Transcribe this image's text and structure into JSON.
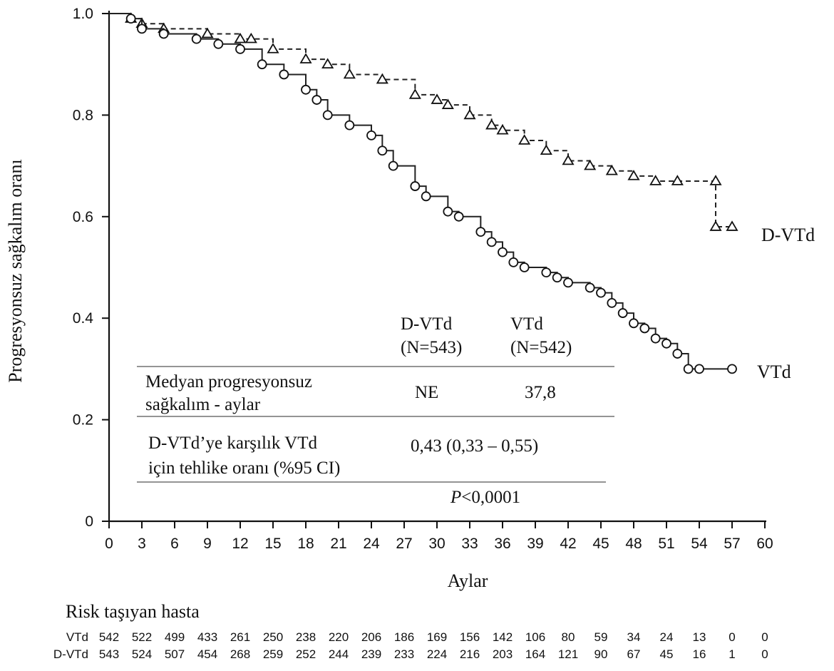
{
  "chart_data": {
    "type": "line",
    "xlabel": "Aylar",
    "ylabel": "Progresyonsuz sağkalım oranı",
    "xlim": [
      0,
      60
    ],
    "ylim": [
      0,
      1.0
    ],
    "x_ticks": [
      "0",
      "3",
      "6",
      "9",
      "12",
      "15",
      "18",
      "21",
      "24",
      "27",
      "30",
      "33",
      "36",
      "39",
      "42",
      "45",
      "48",
      "51",
      "54",
      "57",
      "60"
    ],
    "y_ticks": [
      "0",
      "0.2",
      "0.4",
      "0.6",
      "0.8",
      "1.0"
    ],
    "grid": false,
    "series": [
      {
        "name": "D-VTd",
        "style": "dashed",
        "marker": "triangle",
        "color": "#222222",
        "points": [
          [
            0,
            1.0
          ],
          [
            2,
            0.99
          ],
          [
            3,
            0.98
          ],
          [
            5,
            0.97
          ],
          [
            9,
            0.96
          ],
          [
            12,
            0.95
          ],
          [
            13,
            0.95
          ],
          [
            15,
            0.93
          ],
          [
            18,
            0.91
          ],
          [
            20,
            0.9
          ],
          [
            22,
            0.88
          ],
          [
            25,
            0.87
          ],
          [
            28,
            0.84
          ],
          [
            30,
            0.83
          ],
          [
            31,
            0.82
          ],
          [
            33,
            0.8
          ],
          [
            35,
            0.78
          ],
          [
            36,
            0.77
          ],
          [
            38,
            0.75
          ],
          [
            40,
            0.73
          ],
          [
            42,
            0.71
          ],
          [
            44,
            0.7
          ],
          [
            46,
            0.69
          ],
          [
            48,
            0.68
          ],
          [
            50,
            0.67
          ],
          [
            52,
            0.67
          ],
          [
            55.5,
            0.67
          ],
          [
            55.5,
            0.58
          ],
          [
            57,
            0.58
          ]
        ]
      },
      {
        "name": "VTd",
        "style": "solid",
        "marker": "circle",
        "color": "#222222",
        "points": [
          [
            0,
            1.0
          ],
          [
            2,
            0.99
          ],
          [
            3,
            0.97
          ],
          [
            5,
            0.96
          ],
          [
            8,
            0.95
          ],
          [
            10,
            0.94
          ],
          [
            12,
            0.93
          ],
          [
            14,
            0.9
          ],
          [
            16,
            0.88
          ],
          [
            18,
            0.85
          ],
          [
            19,
            0.83
          ],
          [
            20,
            0.8
          ],
          [
            22,
            0.78
          ],
          [
            24,
            0.76
          ],
          [
            25,
            0.73
          ],
          [
            26,
            0.7
          ],
          [
            28,
            0.66
          ],
          [
            29,
            0.64
          ],
          [
            31,
            0.61
          ],
          [
            32,
            0.6
          ],
          [
            34,
            0.57
          ],
          [
            35,
            0.55
          ],
          [
            36,
            0.53
          ],
          [
            37,
            0.51
          ],
          [
            38,
            0.5
          ],
          [
            40,
            0.49
          ],
          [
            41,
            0.48
          ],
          [
            42,
            0.47
          ],
          [
            44,
            0.46
          ],
          [
            45,
            0.45
          ],
          [
            46,
            0.43
          ],
          [
            47,
            0.41
          ],
          [
            48,
            0.39
          ],
          [
            49,
            0.38
          ],
          [
            50,
            0.36
          ],
          [
            51,
            0.35
          ],
          [
            52,
            0.33
          ],
          [
            53,
            0.3
          ],
          [
            54,
            0.3
          ],
          [
            57,
            0.3
          ]
        ]
      }
    ],
    "series_labels": {
      "dvtd": "D-VTd",
      "vtd": "VTd"
    },
    "annotation_table": {
      "col1": "D-VTd",
      "col1_n": "(N=543)",
      "col2": "VTd",
      "col2_n": "(N=542)",
      "row1_label_line1": "Medyan progresyonsuz",
      "row1_label_line2": "sağkalım - aylar",
      "row1_col1": "NE",
      "row1_col2": "37,8",
      "row2_label_line1": "D-VTd’ye karşılık VTd",
      "row2_label_line2": "için tehlike oranı (%95 CI)",
      "row2_value": "0,43 (0,33 – 0,55)",
      "p_italic": "P",
      "p_rest": "<0,0001"
    },
    "risk_table": {
      "title": "Risk taşıyan hasta",
      "rows": [
        {
          "label": "VTd",
          "values": [
            "542",
            "522",
            "499",
            "433",
            "261",
            "250",
            "238",
            "220",
            "206",
            "186",
            "169",
            "156",
            "142",
            "106",
            "80",
            "59",
            "34",
            "24",
            "13",
            "0",
            "0"
          ]
        },
        {
          "label": "D-VTd",
          "values": [
            "543",
            "524",
            "507",
            "454",
            "268",
            "259",
            "252",
            "244",
            "239",
            "233",
            "224",
            "216",
            "203",
            "164",
            "121",
            "90",
            "67",
            "45",
            "16",
            "1",
            "0"
          ]
        }
      ]
    }
  }
}
